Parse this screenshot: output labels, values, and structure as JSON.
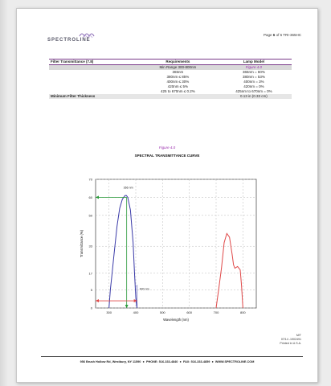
{
  "header": {
    "logo_text": "SPECTROLINE",
    "page_label_prefix": "Page",
    "page_number": "6",
    "page_label_suffix": "of 6 TRI-365HC"
  },
  "spec_table": {
    "col_headers": [
      "Filter Transmittance (7.8)",
      "Requirements",
      "Lamp Model"
    ],
    "range_row": [
      "",
      "Min Range 300-800nm",
      "Figure 4.0"
    ],
    "rows": [
      [
        "",
        "365nm",
        "365nm = 60%"
      ],
      [
        "",
        "380nm ≤ 85%",
        "380nm = 53%"
      ],
      [
        "",
        "400nm ≤ 30%",
        "400nm = 3%"
      ],
      [
        "",
        "420nm ≤ 5%",
        "420nm = 0%"
      ],
      [
        "",
        "425 to 670nm ≤ 0.2%",
        "425nm to 670nm = 0%"
      ]
    ],
    "min_thickness": [
      "Minimum Filter Thickness",
      "",
      "0.13 in (0.33 cm)"
    ]
  },
  "figure": {
    "label": "Figure 4.0",
    "title": "SPECTRAL TRANSMITTANCE CURVE"
  },
  "chart_data": {
    "type": "line",
    "title": "SPECTRAL TRANSMITTANCE CURVE",
    "xlabel": "Wavelength (nm)",
    "ylabel": "Transmittance (%)",
    "xlim": [
      250,
      850
    ],
    "ylim": [
      0,
      70
    ],
    "x_ticks": [
      "300",
      "400",
      "500",
      "600",
      "700",
      "800"
    ],
    "y_ticks": [
      "0",
      "5",
      "17",
      "33",
      "50",
      "60",
      "70"
    ],
    "grid": true,
    "series": [
      {
        "color": "#3a3aa8",
        "x": [
          300,
          305,
          310,
          320,
          330,
          340,
          350,
          360,
          365,
          370,
          380,
          390,
          395,
          400,
          403,
          405
        ],
        "y": [
          0,
          5,
          14,
          30,
          44,
          54,
          59,
          61,
          61,
          60,
          53,
          35,
          18,
          3,
          1,
          0
        ]
      },
      {
        "color": "#e04848",
        "x": [
          700,
          710,
          720,
          730,
          740,
          750,
          760,
          765,
          770,
          780,
          790,
          795,
          800
        ],
        "y": [
          0,
          6,
          20,
          35,
          40,
          38,
          28,
          22,
          20,
          21,
          19,
          8,
          0
        ]
      }
    ],
    "annotations": [
      {
        "text": "366 nm",
        "x": 366,
        "y": 64
      },
      {
        "text": "400 nm",
        "x": 405,
        "y": 5
      }
    ]
  },
  "footnote": {
    "line1": "M/T",
    "line2": "07/14 -1902491",
    "line3": "Printed in U.S.A."
  },
  "footer": {
    "address": "956 Brush Hollow Rd, Westbury, NY 11590",
    "phone": "PHONE: 516-333-4840",
    "fax": "FAX: 516-333-4859",
    "web": "WWW.SPECTROLINE.COM",
    "sep": "●"
  }
}
